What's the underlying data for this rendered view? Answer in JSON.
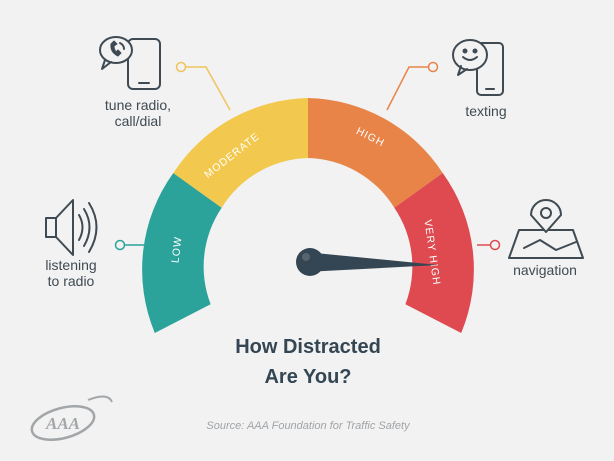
{
  "title": {
    "line1": "How Distracted",
    "line2": "Are You?"
  },
  "source": "Source: AAA Foundation for Traffic Safety",
  "logo": {
    "text": "AAA"
  },
  "gauge": {
    "segments": [
      {
        "label": "LOW",
        "color": "#2ba39a"
      },
      {
        "label": "MODERATE",
        "color": "#f2c94e"
      },
      {
        "label": "HIGH",
        "color": "#e88447"
      },
      {
        "label": "VERY HIGH",
        "color": "#de4a4f"
      }
    ],
    "needle_color": "#344653",
    "level": "VERY HIGH"
  },
  "activities": [
    {
      "lines": [
        "listening",
        "to radio"
      ],
      "icon": "speaker-icon"
    },
    {
      "lines": [
        "tune radio,",
        "call/dial"
      ],
      "icon": "phone-call-icon"
    },
    {
      "lines": [
        "texting"
      ],
      "icon": "texting-phone-icon"
    },
    {
      "lines": [
        "navigation"
      ],
      "icon": "navigation-map-icon"
    }
  ],
  "colors": {
    "background": "#f2f2f2",
    "connector_line": "#f0c45a",
    "icon_stroke": "#3f4a52"
  }
}
